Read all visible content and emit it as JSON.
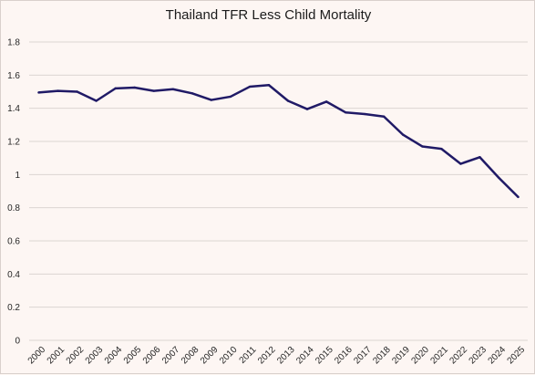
{
  "chart_data": {
    "type": "line",
    "title": "Thailand TFR Less Child Mortality",
    "xlabel": "",
    "ylabel": "",
    "ylim": [
      0,
      1.8
    ],
    "yticks": [
      "0",
      "0.2",
      "0.4",
      "0.6",
      "0.8",
      "1",
      "1.2",
      "1.4",
      "1.6",
      "1.8"
    ],
    "categories": [
      "2000",
      "2001",
      "2002",
      "2003",
      "2004",
      "2005",
      "2006",
      "2007",
      "2008",
      "2009",
      "2010",
      "2011",
      "2012",
      "2013",
      "2014",
      "2015",
      "2016",
      "2017",
      "2018",
      "2019",
      "2020",
      "2021",
      "2022",
      "2023",
      "2024",
      "2025"
    ],
    "series": [
      {
        "values": [
          1.495,
          1.505,
          1.5,
          1.445,
          1.52,
          1.525,
          1.505,
          1.515,
          1.49,
          1.45,
          1.47,
          1.53,
          1.54,
          1.445,
          1.395,
          1.44,
          1.375,
          1.365,
          1.35,
          1.24,
          1.17,
          1.155,
          1.065,
          1.105,
          0.98,
          0.865
        ],
        "color": "#201a66"
      }
    ],
    "grid": true,
    "legend": "none"
  }
}
